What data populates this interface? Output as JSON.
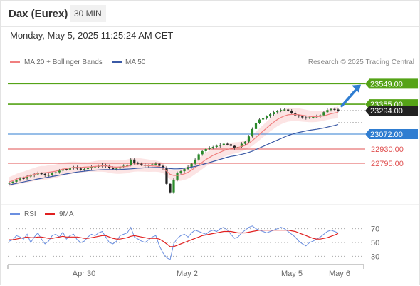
{
  "header": {
    "title": "Dax (Eurex)",
    "timeframe": "30 MIN"
  },
  "datetime": "Monday, May 5, 2025 11:25:24 AM CET",
  "colors": {
    "accent": "#2f7dd1",
    "up": "#55a317",
    "down": "#e05050",
    "ma20": "#f07f7f",
    "ma50": "#3b5aa6",
    "rsi": "#6b8fe0",
    "rsi_ma": "#e02020"
  },
  "chart_data": [
    {
      "type": "candlestick",
      "title": "Dax (Eurex) 30 MIN",
      "legend": [
        "MA 20 + Bollinger Bands",
        "MA 50"
      ],
      "credit": "Research © 2025 Trading Central",
      "x_ticks": [
        "Apr 30",
        "May 2",
        "May 5",
        "May 6"
      ],
      "ylim": [
        22430,
        23700
      ],
      "price_tags": [
        {
          "label": "23549.00",
          "value": 23549,
          "style": "green"
        },
        {
          "label": "23355.00",
          "value": 23355,
          "style": "green"
        },
        {
          "label": "23294.00",
          "value": 23294,
          "style": "black"
        },
        {
          "label": "23072.00",
          "value": 23072,
          "style": "blue"
        },
        {
          "label": "22930.00",
          "value": 22930,
          "style": "red"
        },
        {
          "label": "22795.00",
          "value": 22795,
          "style": "red"
        }
      ],
      "close": [
        22610,
        22620,
        22640,
        22655,
        22650,
        22670,
        22680,
        22690,
        22700,
        22695,
        22680,
        22685,
        22700,
        22710,
        22725,
        22740,
        22735,
        22750,
        22760,
        22745,
        22735,
        22740,
        22750,
        22760,
        22765,
        22770,
        22780,
        22770,
        22750,
        22740,
        22745,
        22760,
        22770,
        22780,
        22830,
        22800,
        22790,
        22780,
        22770,
        22775,
        22785,
        22790,
        22770,
        22750,
        22600,
        22520,
        22640,
        22700,
        22720,
        22740,
        22760,
        22790,
        22830,
        22880,
        22910,
        22930,
        22940,
        22950,
        22960,
        22970,
        22980,
        22975,
        22960,
        22940,
        22950,
        22980,
        23000,
        23050,
        23120,
        23180,
        23210,
        23220,
        23240,
        23260,
        23280,
        23290,
        23300,
        23305,
        23295,
        23270,
        23250,
        23240,
        23230,
        23225,
        23230,
        23235,
        23240,
        23250,
        23280,
        23300,
        23310,
        23305,
        23290
      ],
      "ma20": [
        22620,
        22630,
        22645,
        22655,
        22660,
        22670,
        22680,
        22690,
        22700,
        22705,
        22705,
        22710,
        22715,
        22720,
        22730,
        22740,
        22745,
        22750,
        22755,
        22755,
        22755,
        22758,
        22760,
        22762,
        22765,
        22768,
        22770,
        22770,
        22765,
        22760,
        22758,
        22760,
        22762,
        22765,
        22775,
        22780,
        22780,
        22778,
        22775,
        22772,
        22770,
        22768,
        22762,
        22750,
        22720,
        22690,
        22680,
        22680,
        22685,
        22695,
        22710,
        22730,
        22755,
        22780,
        22805,
        22830,
        22850,
        22870,
        22885,
        22900,
        22915,
        22925,
        22935,
        22940,
        22945,
        22955,
        22965,
        22985,
        23010,
        23040,
        23070,
        23100,
        23130,
        23160,
        23185,
        23210,
        23230,
        23245,
        23255,
        23258,
        23258,
        23255,
        23250,
        23245,
        23240,
        23238,
        23238,
        23240,
        23245,
        23255,
        23265,
        23272,
        23278
      ],
      "ma50": [
        22590,
        22597,
        22604,
        22611,
        22618,
        22625,
        22632,
        22639,
        22646,
        22652,
        22658,
        22664,
        22670,
        22676,
        22682,
        22688,
        22694,
        22700,
        22706,
        22712,
        22716,
        22720,
        22724,
        22727,
        22730,
        22732,
        22734,
        22735,
        22735,
        22735,
        22735,
        22736,
        22738,
        22740,
        22742,
        22745,
        22748,
        22750,
        22752,
        22753,
        22754,
        22755,
        22755,
        22754,
        22750,
        22745,
        22742,
        22742,
        22744,
        22748,
        22752,
        22758,
        22765,
        22773,
        22782,
        22792,
        22802,
        22812,
        22822,
        22832,
        22842,
        22852,
        22860,
        22866,
        22872,
        22880,
        22888,
        22898,
        22910,
        22925,
        22940,
        22955,
        22970,
        22985,
        23000,
        23015,
        23030,
        23045,
        23058,
        23070,
        23080,
        23088,
        23095,
        23102,
        23108,
        23113,
        23118,
        23124,
        23130,
        23138,
        23146,
        23154,
        23162
      ]
    },
    {
      "type": "line",
      "title": "RSI",
      "series_names": [
        "RSI",
        "9MA"
      ],
      "y_ticks": [
        70,
        50,
        30
      ],
      "ylim": [
        20,
        80
      ],
      "rsi": [
        52,
        54,
        60,
        58,
        55,
        62,
        50,
        58,
        64,
        55,
        48,
        52,
        60,
        62,
        58,
        65,
        55,
        60,
        62,
        54,
        50,
        52,
        58,
        62,
        60,
        64,
        66,
        58,
        50,
        48,
        52,
        60,
        62,
        64,
        72,
        58,
        55,
        52,
        50,
        54,
        58,
        60,
        45,
        35,
        28,
        25,
        48,
        56,
        60,
        62,
        58,
        64,
        68,
        66,
        64,
        62,
        66,
        68,
        66,
        70,
        72,
        68,
        62,
        56,
        58,
        64,
        68,
        72,
        74,
        70,
        68,
        66,
        64,
        66,
        68,
        70,
        72,
        70,
        66,
        62,
        58,
        52,
        48,
        45,
        50,
        52,
        55,
        58,
        62,
        66,
        68,
        66,
        64
      ],
      "rsi_ma": [
        54,
        54,
        55,
        56,
        57,
        58,
        57,
        57,
        58,
        58,
        57,
        56,
        56,
        57,
        58,
        59,
        58,
        58,
        58,
        58,
        57,
        56,
        56,
        57,
        58,
        59,
        60,
        60,
        58,
        56,
        55,
        55,
        56,
        57,
        59,
        60,
        59,
        58,
        57,
        56,
        56,
        56,
        55,
        52,
        48,
        44,
        44,
        46,
        48,
        50,
        52,
        54,
        56,
        58,
        60,
        61,
        62,
        63,
        64,
        65,
        66,
        66,
        66,
        65,
        64,
        64,
        64,
        65,
        66,
        67,
        68,
        68,
        68,
        68,
        68,
        68,
        68,
        68,
        68,
        67,
        66,
        64,
        62,
        60,
        58,
        56,
        55,
        55,
        56,
        57,
        59,
        61,
        63
      ]
    }
  ]
}
